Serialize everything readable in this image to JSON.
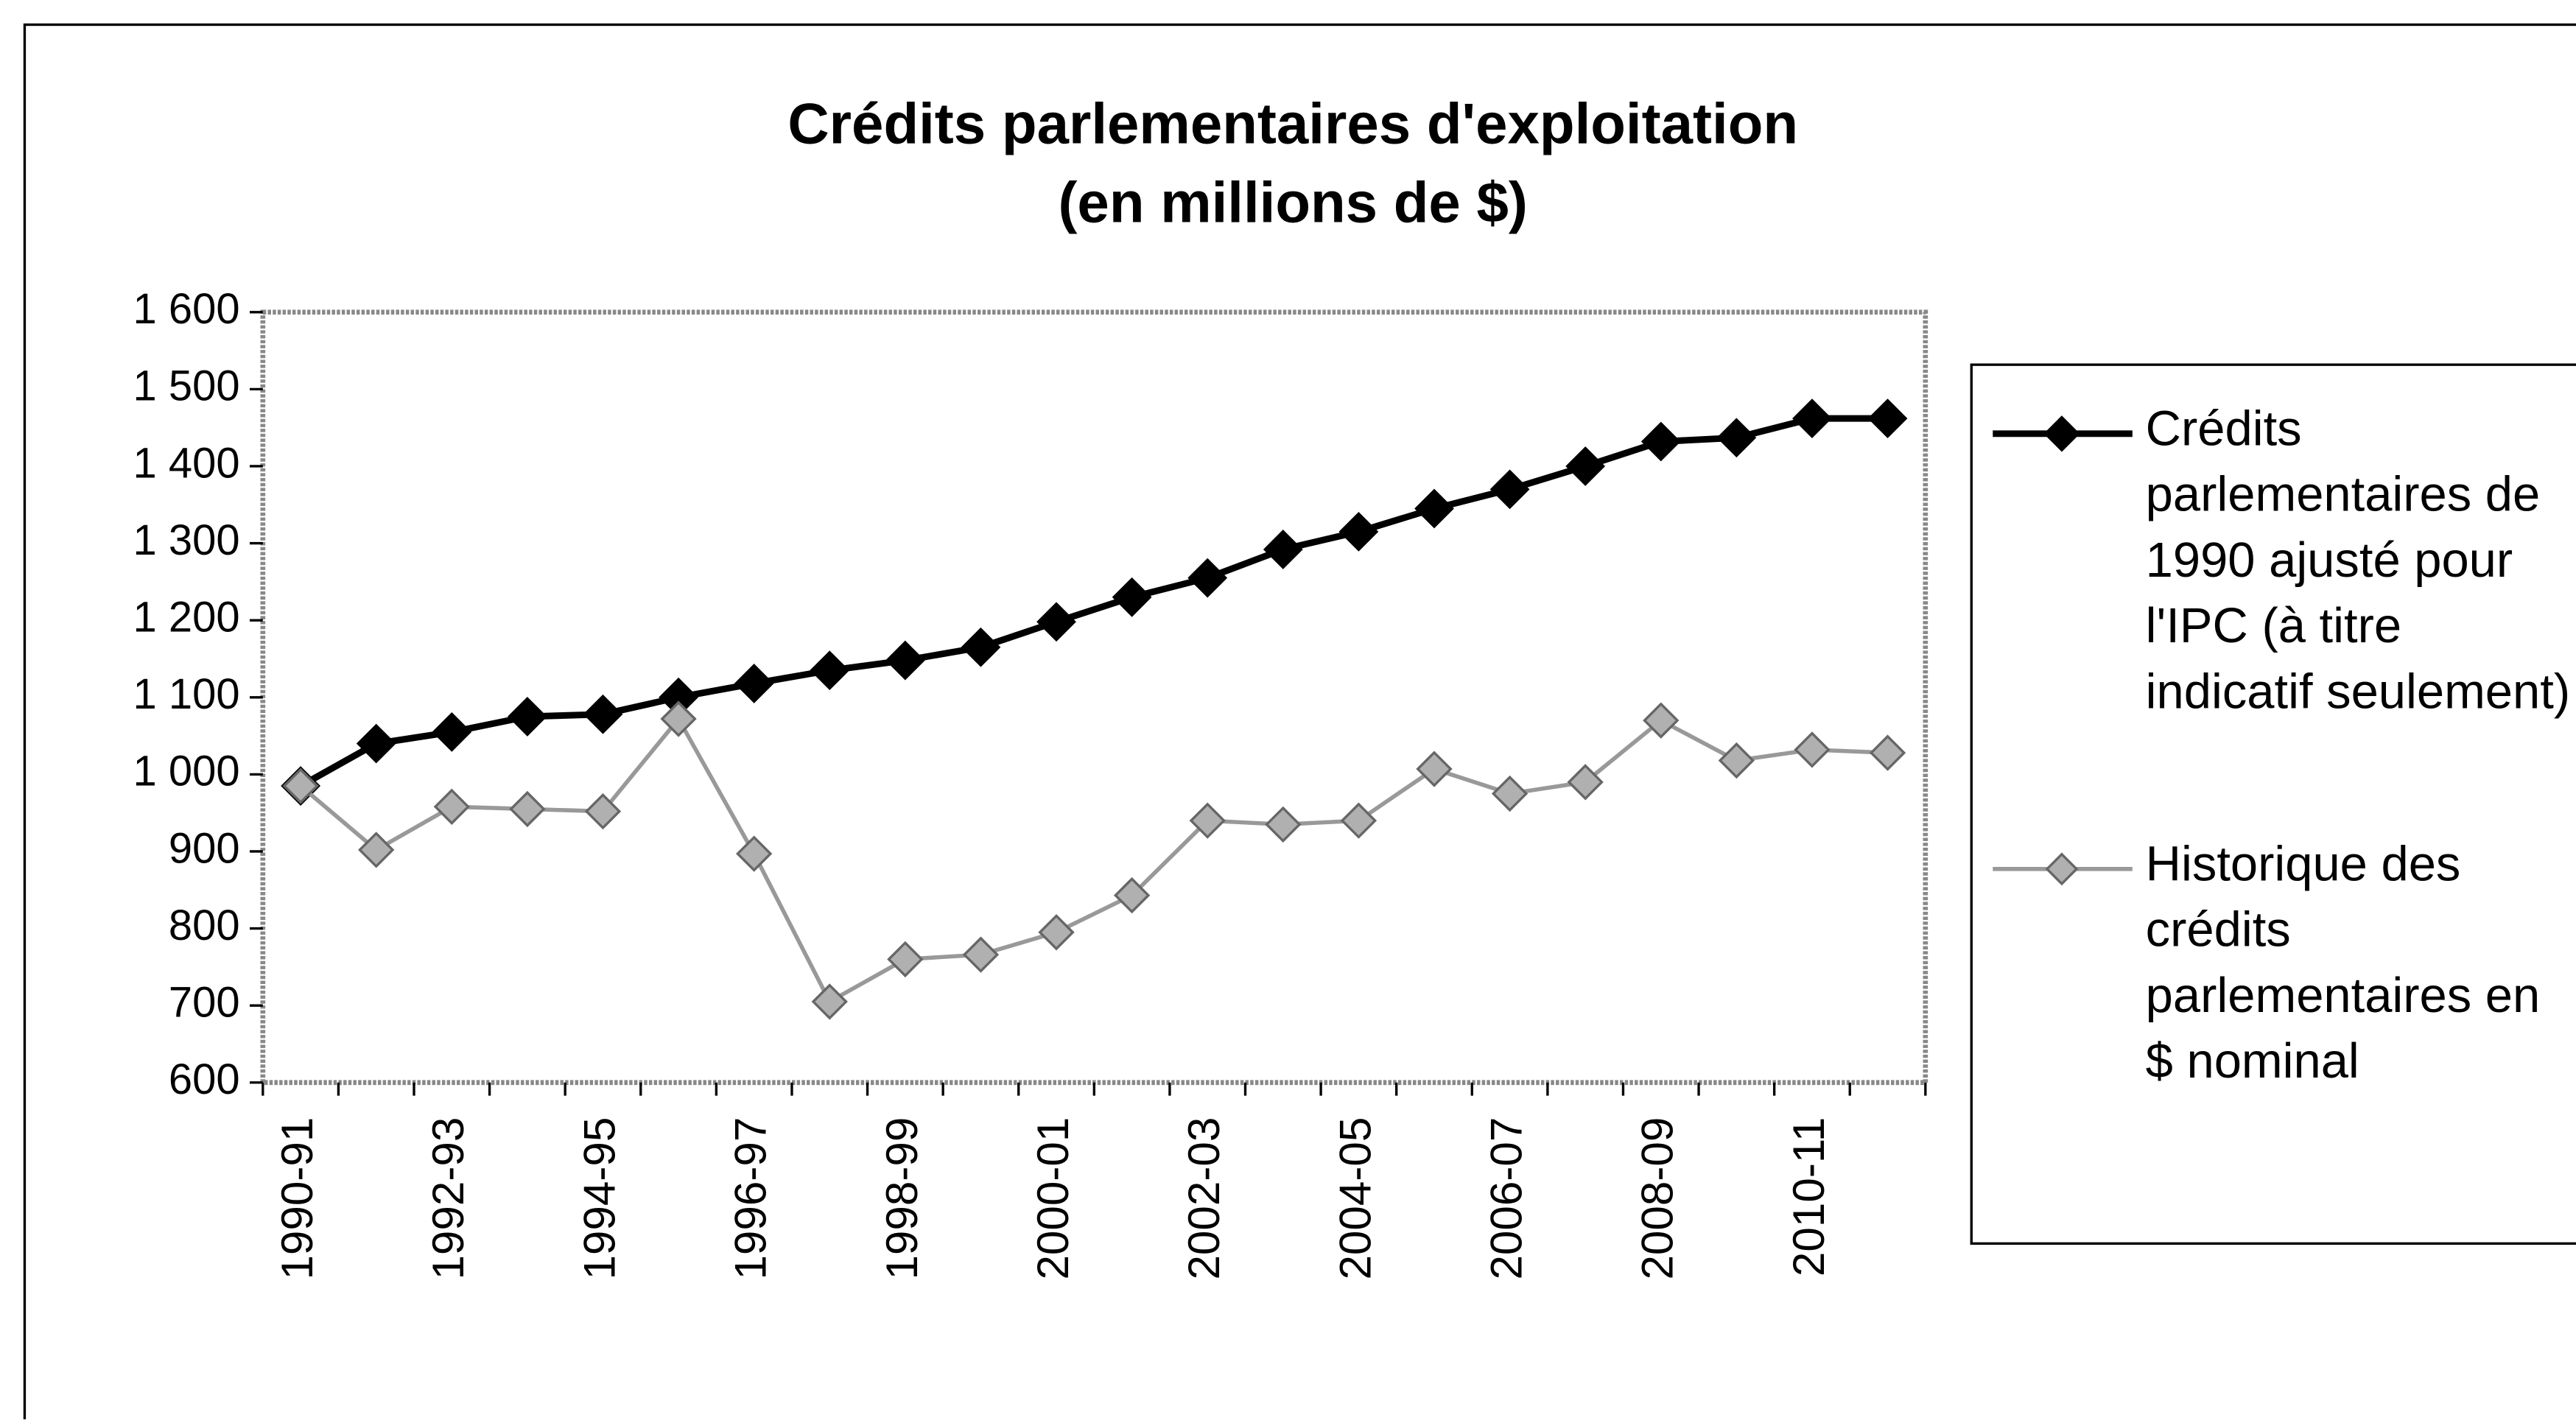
{
  "chart_data": {
    "type": "line",
    "title": "Crédits parlementaires d'exploitation",
    "subtitle": "(en millions de $)",
    "categories": [
      "1990-91",
      null,
      "1992-93",
      null,
      "1994-95",
      null,
      "1996-97",
      null,
      "1998-99",
      null,
      "2000-01",
      null,
      "2002-03",
      null,
      "2004-05",
      null,
      "2006-07",
      null,
      "2008-09",
      null,
      "2010-11",
      null
    ],
    "series": [
      {
        "name": "Crédits parlementaires de 1990 ajusté pour l'IPC (à titre indicatif seulement)",
        "color": "#000000",
        "values": [
          985,
          1040,
          1055,
          1075,
          1078,
          1100,
          1118,
          1135,
          1148,
          1165,
          1198,
          1230,
          1255,
          1292,
          1315,
          1345,
          1370,
          1400,
          1432,
          1437,
          1462,
          1462
        ]
      },
      {
        "name": "Historique des crédits parlementaires en $ nominal",
        "color": "#999999",
        "values": [
          985,
          902,
          958,
          955,
          952,
          1072,
          897,
          705,
          760,
          766,
          795,
          843,
          940,
          935,
          940,
          1007,
          975,
          990,
          1070,
          1018,
          1032,
          1028
        ]
      }
    ],
    "ylim": [
      600,
      1600
    ],
    "yticks": [
      600,
      700,
      800,
      900,
      {
        "value": 1000,
        "label": "1 000"
      },
      {
        "value": 1100,
        "label": "1 100"
      },
      {
        "value": 1200,
        "label": "1 200"
      },
      {
        "value": 1300,
        "label": "1 300"
      },
      {
        "value": 1400,
        "label": "1 400"
      },
      {
        "value": 1500,
        "label": "1 500"
      },
      {
        "value": 1600,
        "label": "1 600"
      }
    ],
    "grid": false,
    "legend": "right"
  }
}
